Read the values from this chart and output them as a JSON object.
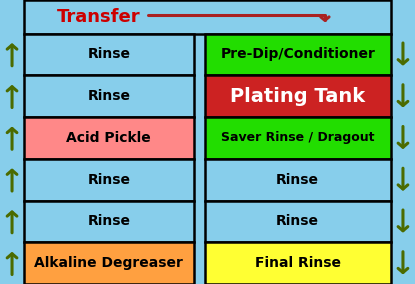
{
  "title": "Transfer",
  "title_color": "#CC0000",
  "background_color": "#87CEEB",
  "header_bg": "#87CEEB",
  "left_column": [
    {
      "label": "Rinse",
      "color": "#87CEEB",
      "text_color": "#000000"
    },
    {
      "label": "Rinse",
      "color": "#87CEEB",
      "text_color": "#000000"
    },
    {
      "label": "Acid Pickle",
      "color": "#FF8888",
      "text_color": "#000000"
    },
    {
      "label": "Rinse",
      "color": "#87CEEB",
      "text_color": "#000000"
    },
    {
      "label": "Rinse",
      "color": "#87CEEB",
      "text_color": "#000000"
    },
    {
      "label": "Alkaline Degreaser",
      "color": "#FFA040",
      "text_color": "#000000"
    }
  ],
  "right_column": [
    {
      "label": "Pre-Dip/Conditioner",
      "color": "#22DD00",
      "text_color": "#000000",
      "fontsize": 10
    },
    {
      "label": "Plating Tank",
      "color": "#CC2222",
      "text_color": "#FFFFFF",
      "fontsize": 14
    },
    {
      "label": "Saver Rinse / Dragout",
      "color": "#22DD00",
      "text_color": "#000000",
      "fontsize": 9
    },
    {
      "label": "Rinse",
      "color": "#87CEEB",
      "text_color": "#000000",
      "fontsize": 10
    },
    {
      "label": "Rinse",
      "color": "#87CEEB",
      "text_color": "#000000",
      "fontsize": 10
    },
    {
      "label": "Final Rinse",
      "color": "#FFFF33",
      "text_color": "#000000",
      "fontsize": 10
    }
  ],
  "arrow_color": "#4B6B00",
  "transfer_arrow_color": "#AA2222",
  "border_color": "#000000",
  "figsize": [
    4.15,
    2.84
  ],
  "dpi": 100
}
